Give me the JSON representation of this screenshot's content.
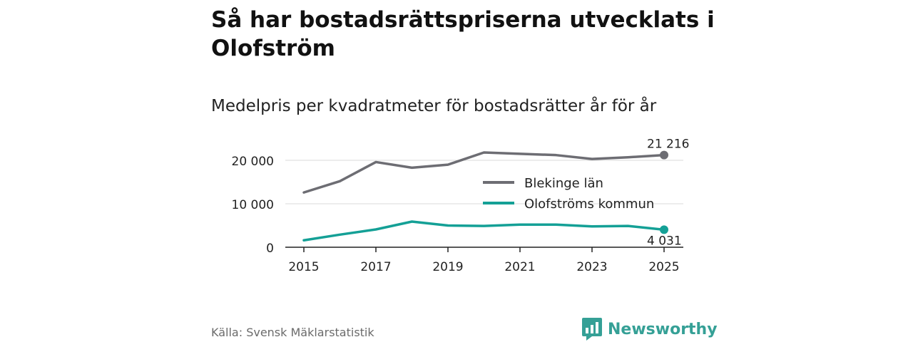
{
  "title": "Så har bostadsrättspriserna utvecklats i Olofström",
  "subtitle": "Medelpris per kvadratmeter för bostadsrätter år för år",
  "source": "Källa: Svensk Mäklarstatistik",
  "brand": "Newsworthy",
  "chart_data": {
    "type": "line",
    "title": "Så har bostadsrättspriserna utvecklats i Olofström",
    "subtitle": "Medelpris per kvadratmeter för bostadsrätter år för år",
    "x": [
      2015,
      2016,
      2017,
      2018,
      2019,
      2020,
      2021,
      2022,
      2023,
      2024,
      2025
    ],
    "x_ticks": [
      "2015",
      "2017",
      "2019",
      "2021",
      "2023",
      "2025"
    ],
    "y_ticks": [
      "0",
      "10 000",
      "20 000"
    ],
    "ylim": [
      0,
      22500
    ],
    "grid": true,
    "legend_position": "center-right",
    "series": [
      {
        "name": "Blekinge län",
        "color": "#6d6d73",
        "values": [
          12600,
          15200,
          19600,
          18300,
          19000,
          21800,
          21500,
          21200,
          20300,
          20700,
          21216
        ],
        "end_label": "21 216"
      },
      {
        "name": "Olofströms kommun",
        "color": "#14a096",
        "values": [
          1600,
          2900,
          4100,
          5900,
          5000,
          4900,
          5200,
          5200,
          4800,
          4900,
          4031
        ],
        "end_label": "4 031"
      }
    ]
  }
}
